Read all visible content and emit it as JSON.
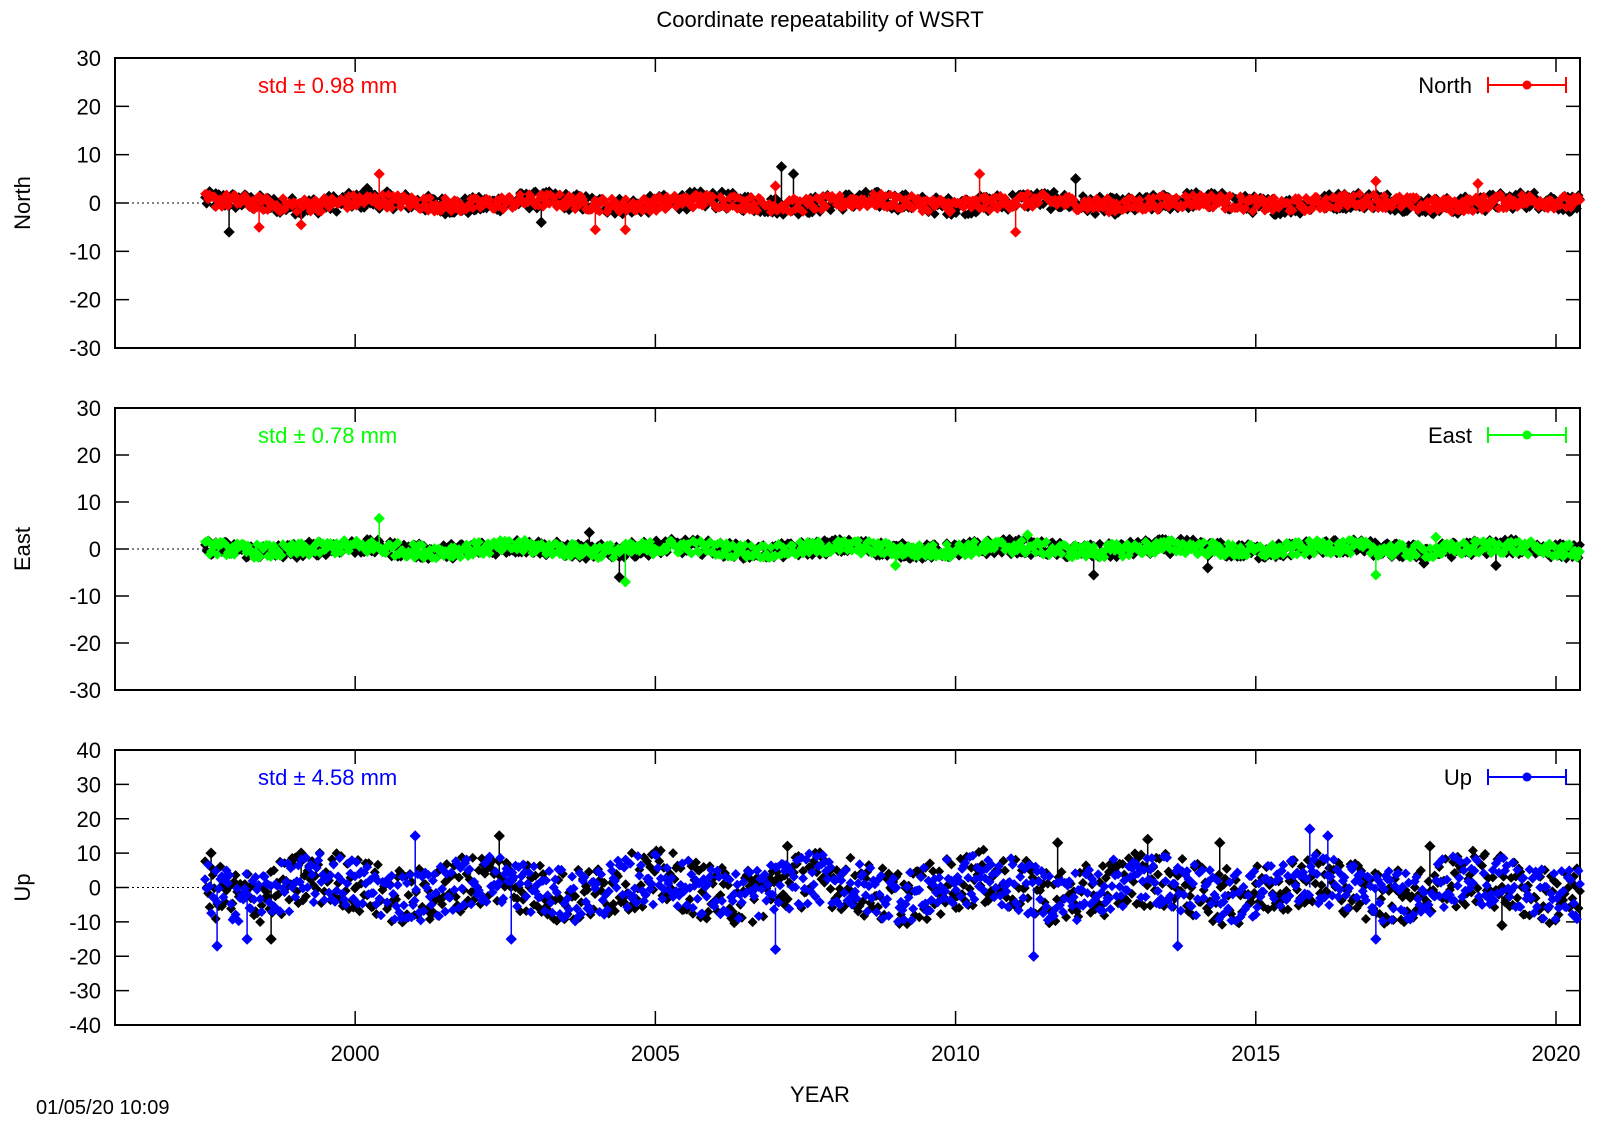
{
  "title": "Coordinate repeatability of WSRT",
  "timestamp": "01/05/20 10:09",
  "colors": {
    "background": "#ffffff",
    "north": "#ff0000",
    "east": "#00ff00",
    "up": "#0000ff",
    "reference": "#000000"
  },
  "chart_data": [
    {
      "type": "scatter",
      "title": "Coordinate repeatability of WSRT",
      "xlabel": "YEAR",
      "ylabel": "North",
      "xlim": [
        1996,
        2020.4
      ],
      "ylim": [
        -30,
        30
      ],
      "y_ticks": [
        -30,
        -20,
        -10,
        0,
        10,
        20,
        30
      ],
      "x_ticks": [],
      "std_label": "std ± 0.98 mm",
      "legend": {
        "position": "top-right",
        "label": "North"
      },
      "zero_line": true,
      "series": [
        {
          "name": "North",
          "color": "#ff0000",
          "x_range": [
            1997.5,
            2020.4
          ],
          "band": [
            -2,
            2
          ],
          "outliers": [
            [
              1998.4,
              -5
            ],
            [
              1999.1,
              -4.5
            ],
            [
              2000.4,
              6
            ],
            [
              2004.0,
              -5.5
            ],
            [
              2004.5,
              -5.5
            ],
            [
              2007.0,
              3.5
            ],
            [
              2010.4,
              6
            ],
            [
              2011.0,
              -6
            ],
            [
              2017.0,
              4.5
            ],
            [
              2018.7,
              4
            ]
          ]
        },
        {
          "color": "#000000",
          "x_range": [
            1997.5,
            2020.4
          ],
          "band": [
            -2.5,
            2.5
          ],
          "outliers": [
            [
              1997.9,
              -6
            ],
            [
              2000.2,
              3
            ],
            [
              2007.1,
              7.5
            ],
            [
              2007.3,
              6
            ],
            [
              2012.0,
              5
            ],
            [
              2003.1,
              -4
            ]
          ]
        }
      ]
    },
    {
      "type": "scatter",
      "xlabel": "YEAR",
      "ylabel": "East",
      "xlim": [
        1996,
        2020.4
      ],
      "ylim": [
        -30,
        30
      ],
      "y_ticks": [
        -30,
        -20,
        -10,
        0,
        10,
        20,
        30
      ],
      "x_ticks": [],
      "std_label": "std ± 0.78 mm",
      "legend": {
        "position": "top-right",
        "label": "East"
      },
      "zero_line": true,
      "series": [
        {
          "name": "East",
          "color": "#00ff00",
          "x_range": [
            1997.5,
            2020.4
          ],
          "band": [
            -2,
            2
          ],
          "outliers": [
            [
              2000.4,
              6.5
            ],
            [
              2004.5,
              -7
            ],
            [
              2009.0,
              -3.5
            ],
            [
              2011.2,
              3
            ],
            [
              2017.0,
              -5.5
            ],
            [
              2018.0,
              2.5
            ]
          ]
        },
        {
          "color": "#000000",
          "x_range": [
            1997.5,
            2020.4
          ],
          "band": [
            -2.5,
            2
          ],
          "outliers": [
            [
              2004.4,
              -6
            ],
            [
              2012.3,
              -5.5
            ],
            [
              2014.2,
              -4
            ],
            [
              2003.9,
              3.5
            ],
            [
              2017.8,
              -3
            ],
            [
              2019.0,
              -3.5
            ]
          ]
        }
      ]
    },
    {
      "type": "scatter",
      "xlabel": "YEAR",
      "ylabel": "Up",
      "xlim": [
        1996,
        2020.4
      ],
      "ylim": [
        -40,
        40
      ],
      "y_ticks": [
        -40,
        -30,
        -20,
        -10,
        0,
        10,
        20,
        30,
        40
      ],
      "x_ticks": [
        2000,
        2005,
        2010,
        2015,
        2020
      ],
      "std_label": "std ± 4.58 mm",
      "legend": {
        "position": "top-right",
        "label": "Up"
      },
      "zero_line": true,
      "series": [
        {
          "name": "Up",
          "color": "#0000ff",
          "x_range": [
            1997.5,
            2020.4
          ],
          "band": [
            -10,
            10
          ],
          "outliers": [
            [
              1997.7,
              -17
            ],
            [
              1998.2,
              -15
            ],
            [
              2002.6,
              -15
            ],
            [
              2007.0,
              -18
            ],
            [
              2011.3,
              -20
            ],
            [
              2013.7,
              -17
            ],
            [
              2015.9,
              17
            ],
            [
              2016.2,
              15
            ],
            [
              2017.0,
              -15
            ],
            [
              2001.0,
              15
            ]
          ]
        },
        {
          "color": "#000000",
          "x_range": [
            1997.5,
            2020.4
          ],
          "band": [
            -11,
            11
          ],
          "outliers": [
            [
              1997.6,
              10
            ],
            [
              1998.6,
              -15
            ],
            [
              1999.1,
              10
            ],
            [
              2002.4,
              15
            ],
            [
              2007.2,
              12
            ],
            [
              2013.2,
              14
            ],
            [
              2014.4,
              13
            ],
            [
              2017.9,
              12
            ],
            [
              2019.1,
              -11
            ],
            [
              2011.7,
              13
            ]
          ]
        }
      ]
    }
  ]
}
